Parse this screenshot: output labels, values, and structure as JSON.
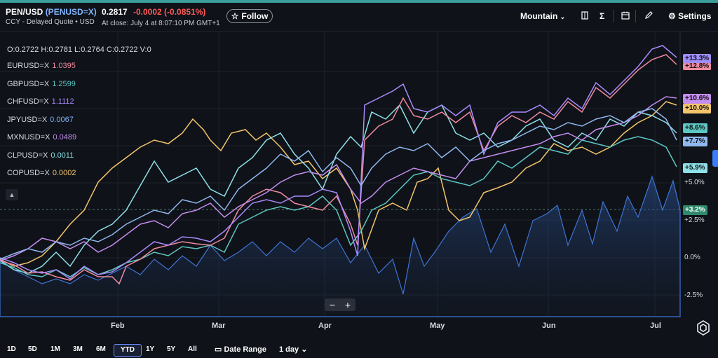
{
  "header": {
    "pair": "PEN/USD",
    "symbol": "(PENUSD=X)",
    "quote_type": "CCY - Delayed Quote • USD",
    "price": "0.2817",
    "change": "-0.0002",
    "change_pct": "(-0.0851%)",
    "close_time": "At close: July 4 at 8:07:10 PM GMT+1",
    "follow_label": "Follow"
  },
  "toolbar": {
    "chart_type": "Mountain",
    "indicators": "Σ",
    "settings_label": "Settings"
  },
  "ohlc": "O:0.2722  H:0.2781  L:0.2764  C:0.2722  V:0",
  "legend": [
    {
      "name": "EURUSD=X",
      "value": "1.0395",
      "color": "#f08aa0"
    },
    {
      "name": "GBPUSD=X",
      "value": "1.2599",
      "color": "#5cc6c2"
    },
    {
      "name": "CHFUSD=X",
      "value": "1.1112",
      "color": "#a98bff"
    },
    {
      "name": "JPYUSD=X",
      "value": "0.0067",
      "color": "#7fb5ff"
    },
    {
      "name": "MXNUSD=X",
      "value": "0.0489",
      "color": "#c48df0"
    },
    {
      "name": "CLPUSD=X",
      "value": "0.0011",
      "color": "#8ee0e8"
    },
    {
      "name": "COPUSD=X",
      "value": "0.0002",
      "color": "#f3c46b"
    }
  ],
  "tags": [
    {
      "label": "+13.3%",
      "color": "#9f8cff"
    },
    {
      "label": "+12.8%",
      "color": "#f08aa0"
    },
    {
      "label": "+10.6%",
      "color": "#c48df0"
    },
    {
      "label": "+10.0%",
      "color": "#f3c46b"
    },
    {
      "label": "+8.6%",
      "color": "#5cc6c2"
    },
    {
      "label": "+7.7%",
      "color": "#8fb8f0"
    },
    {
      "label": "+5.9%",
      "color": "#8ee0e8"
    },
    {
      "label": "+3.2%",
      "color": "#2f8a6b"
    }
  ],
  "y_labels": [
    "+5.0%",
    "+2.5%",
    "0.0%",
    "-2.5%"
  ],
  "x_labels": [
    "Feb",
    "Mar",
    "Apr",
    "May",
    "Jun",
    "Jul"
  ],
  "ranges": [
    "1D",
    "5D",
    "1M",
    "3M",
    "6M",
    "YTD",
    "1Y",
    "5Y",
    "All"
  ],
  "date_range_label": "Date Range",
  "interval_label": "1 day",
  "zoom": {
    "minus": "−",
    "plus": "+"
  }
}
